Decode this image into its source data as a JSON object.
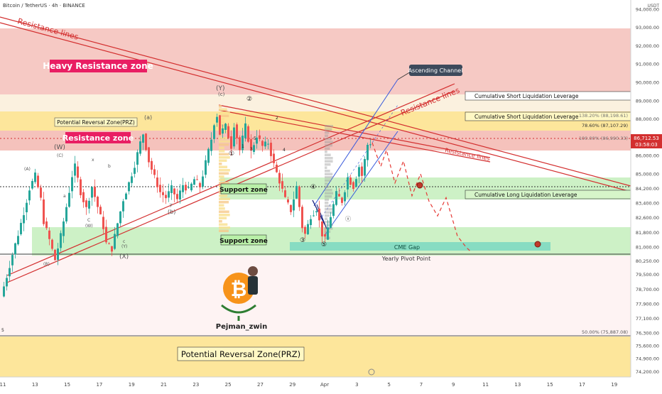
{
  "header": {
    "title": "Bitcoin / TetherUS · 4h · BINANCE",
    "currency": "USDT"
  },
  "price_axis": {
    "ticks": [
      "94,000.00",
      "93,000.00",
      "92,000.00",
      "91,000.00",
      "90,000.00",
      "89,000.00",
      "88,000.00",
      "87,000.00",
      "86,000.00",
      "85,000.00",
      "84,200.00",
      "83,400.00",
      "82,600.00",
      "81,800.00",
      "81,000.00",
      "80,250.00",
      "79,500.00",
      "78,700.00",
      "77,900.00",
      "77,100.00",
      "76,300.00",
      "75,600.00",
      "74,900.00",
      "74,200.00"
    ],
    "last_price": "86,712.53",
    "countdown": "03:58:03"
  },
  "time_axis": {
    "ticks": [
      "11",
      "13",
      "15",
      "17",
      "19",
      "21",
      "23",
      "25",
      "27",
      "29",
      "Apr",
      "3",
      "5",
      "7",
      "9",
      "11",
      "13",
      "15",
      "17",
      "19"
    ]
  },
  "zones": {
    "heavy_resistance": "Heavy Resistance zone",
    "prz_top": "Potential Reversal Zone(PRZ)",
    "resistance": "Resistance zone",
    "support_1": "Support zone",
    "support_2": "Support zone",
    "prz_bottom": "Potential Reversal Zone(PRZ)",
    "cme_gap": "CME Gap",
    "yearly_pivot": "Yearly Pivot Point"
  },
  "annotations": {
    "resistance_lines_1": "Resistance lines",
    "resistance_lines_2": "Resistance lines",
    "resistance_lines_3": "Resistance lines",
    "ascending_channel": "Ascending Channel",
    "short_liq_1": "Cumulative Short Liquidation Leverage",
    "short_liq_2": "Cumulative Short Liquidation Leverage",
    "long_liq": "Cumulative Long Liquidation Leverage",
    "author": "Pejman_zwin"
  },
  "fib_levels": {
    "f1382": "138.20% (88,198.61)",
    "f786": "78.60% (87,107.29)",
    "f100": "100.00% (86,990.33)",
    "f50": "50.00% (75,887.08)"
  },
  "wave_labels": {
    "Y": "(Y)",
    "c_top": "(c)",
    "a": "(a)",
    "W": "(W)",
    "C_w": "(C)",
    "b": "(b)",
    "X": "(X)",
    "B": "(B)",
    "A": "(A)",
    "Y_small": "(Y)",
    "W_small": "(W)",
    "C_small": "C",
    "c_small": "c",
    "a_small": "a",
    "b_small": "b",
    "x_small": "x",
    "y_small": "y",
    "d1": "①",
    "d2": "②",
    "d3": "③",
    "d4": "④",
    "d5": "⑤",
    "n1": "1",
    "n2": "2",
    "n3": "3",
    "n4": "4",
    "n5": "5",
    "x_mark": "ⓧ",
    "s5": "5"
  },
  "colors": {
    "bull": "#26a69a",
    "bear": "#ef5350",
    "resistance_line": "#d32f2f",
    "support_fill": "#c8f0c0",
    "heavy_fill": "#f3b7b0",
    "prz_fill": "#fde28a",
    "cme_fill": "#7fd9c1"
  },
  "chart_data": {
    "type": "candlestick",
    "symbol": "BTCUSDT",
    "timeframe": "4h",
    "y_range": [
      73900,
      94500
    ],
    "last_close": 86712.53,
    "zones": [
      {
        "name": "Heavy Resistance zone",
        "from": 89100,
        "to": 93000
      },
      {
        "name": "Potential Reversal Zone(PRZ)",
        "from": 87100,
        "to": 88200
      },
      {
        "name": "Resistance zone",
        "from": 86000,
        "to": 87100
      },
      {
        "name": "Support zone",
        "from": 83400,
        "to": 84700
      },
      {
        "name": "Support zone",
        "from": 80200,
        "to": 81600
      },
      {
        "name": "Potential Reversal Zone(PRZ)",
        "from": 73900,
        "to": 75900
      },
      {
        "name": "CME Gap",
        "from": 80450,
        "to": 80850
      }
    ],
    "path": [
      [
        0,
        78300
      ],
      [
        2,
        79400
      ],
      [
        4,
        80600
      ],
      [
        6,
        81700
      ],
      [
        8,
        82900
      ],
      [
        10,
        84200
      ],
      [
        12,
        84900
      ],
      [
        14,
        83600
      ],
      [
        15,
        82400
      ],
      [
        17,
        81400
      ],
      [
        19,
        80300
      ],
      [
        21,
        81600
      ],
      [
        23,
        83200
      ],
      [
        25,
        84900
      ],
      [
        26,
        85400
      ],
      [
        28,
        84000
      ],
      [
        30,
        83100
      ],
      [
        32,
        84300
      ],
      [
        34,
        83200
      ],
      [
        36,
        82100
      ],
      [
        37,
        81200
      ],
      [
        39,
        80900
      ],
      [
        41,
        82300
      ],
      [
        43,
        83600
      ],
      [
        45,
        84500
      ],
      [
        47,
        85500
      ],
      [
        49,
        86700
      ],
      [
        50,
        87200
      ],
      [
        52,
        85700
      ],
      [
        54,
        84800
      ],
      [
        56,
        84000
      ],
      [
        58,
        83700
      ],
      [
        60,
        84200
      ],
      [
        62,
        83600
      ],
      [
        64,
        84400
      ],
      [
        66,
        84100
      ],
      [
        68,
        84700
      ],
      [
        70,
        84300
      ],
      [
        72,
        85600
      ],
      [
        74,
        86900
      ],
      [
        75,
        87800
      ],
      [
        76,
        88200
      ],
      [
        77,
        87200
      ],
      [
        79,
        87600
      ],
      [
        81,
        86500
      ],
      [
        82,
        87700
      ],
      [
        84,
        86300
      ],
      [
        86,
        87600
      ],
      [
        88,
        86200
      ],
      [
        90,
        87100
      ],
      [
        92,
        86500
      ],
      [
        94,
        86700
      ],
      [
        96,
        85500
      ],
      [
        98,
        84600
      ],
      [
        100,
        83600
      ],
      [
        102,
        83000
      ],
      [
        104,
        84300
      ],
      [
        105,
        83200
      ],
      [
        106,
        82100
      ],
      [
        107,
        81700
      ],
      [
        109,
        82700
      ],
      [
        111,
        83100
      ],
      [
        113,
        81700
      ],
      [
        114,
        81400
      ],
      [
        116,
        82700
      ],
      [
        118,
        83900
      ],
      [
        120,
        83500
      ],
      [
        122,
        84800
      ],
      [
        124,
        84300
      ],
      [
        126,
        85400
      ],
      [
        127,
        84900
      ],
      [
        129,
        86600
      ],
      [
        130,
        86700
      ]
    ],
    "forecast": [
      [
        130,
        86700
      ],
      [
        133,
        85400
      ],
      [
        135,
        86300
      ],
      [
        138,
        84500
      ],
      [
        141,
        85700
      ],
      [
        144,
        83800
      ],
      [
        147,
        85000
      ],
      [
        150,
        83500
      ],
      [
        153,
        82700
      ],
      [
        156,
        83700
      ],
      [
        160,
        81600
      ],
      [
        163,
        81000
      ],
      [
        165,
        80700
      ]
    ]
  }
}
